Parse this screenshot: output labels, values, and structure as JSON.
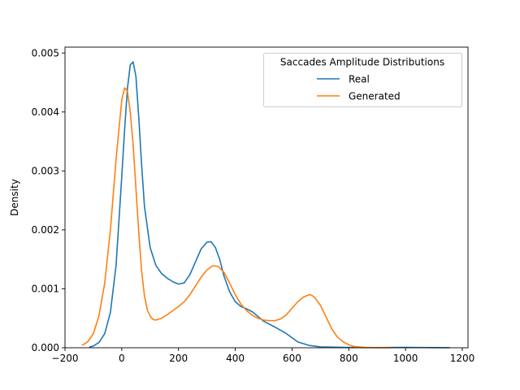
{
  "chart_data": {
    "type": "line",
    "title": "",
    "xlabel": "",
    "ylabel": "Density",
    "xlim": [
      -200,
      1220
    ],
    "ylim": [
      0,
      0.0051
    ],
    "x_ticks": [
      -200,
      0,
      200,
      400,
      600,
      800,
      1000,
      1200
    ],
    "x_tick_labels": [
      "−200",
      "0",
      "200",
      "400",
      "600",
      "800",
      "1000",
      "1200"
    ],
    "y_ticks": [
      0,
      0.001,
      0.002,
      0.003,
      0.004,
      0.005
    ],
    "y_tick_labels": [
      "0.000",
      "0.001",
      "0.002",
      "0.003",
      "0.004",
      "0.005"
    ],
    "grid": false,
    "legend": {
      "title": "Saccades Amplitude Distributions",
      "placement": "top-right"
    },
    "series": [
      {
        "name": "Real",
        "color": "#1f77b4",
        "x": [
          -115,
          -100,
          -80,
          -60,
          -40,
          -20,
          0,
          10,
          20,
          30,
          40,
          50,
          60,
          70,
          80,
          100,
          120,
          140,
          160,
          180,
          200,
          220,
          240,
          260,
          280,
          300,
          315,
          330,
          345,
          360,
          380,
          400,
          420,
          440,
          460,
          480,
          500,
          540,
          580,
          620,
          660,
          700,
          800,
          900,
          1000,
          1100,
          1155
        ],
        "y": [
          1e-05,
          3e-05,
          9e-05,
          0.00024,
          0.0006,
          0.0014,
          0.0029,
          0.0037,
          0.0044,
          0.0048,
          0.00485,
          0.0046,
          0.0039,
          0.0031,
          0.0024,
          0.0017,
          0.0014,
          0.00126,
          0.00118,
          0.00112,
          0.00108,
          0.0011,
          0.00124,
          0.00146,
          0.00168,
          0.00179,
          0.0018,
          0.0017,
          0.0015,
          0.00122,
          0.00095,
          0.00078,
          0.0007,
          0.00066,
          0.00061,
          0.00053,
          0.00045,
          0.00035,
          0.00024,
          0.0001,
          4e-05,
          1.5e-05,
          5e-06,
          3e-06,
          6e-06,
          2e-06,
          1e-06
        ]
      },
      {
        "name": "Generated",
        "color": "#ff7f0e",
        "x": [
          -140,
          -120,
          -100,
          -80,
          -60,
          -40,
          -20,
          0,
          10,
          20,
          30,
          40,
          50,
          60,
          70,
          80,
          90,
          100,
          110,
          120,
          140,
          160,
          180,
          200,
          220,
          240,
          260,
          280,
          300,
          320,
          340,
          360,
          380,
          400,
          420,
          440,
          460,
          480,
          500,
          520,
          540,
          560,
          580,
          600,
          620,
          640,
          660,
          670,
          680,
          700,
          720,
          740,
          760,
          780,
          800,
          820,
          860,
          900,
          950
        ],
        "y": [
          4e-05,
          0.0001,
          0.00024,
          0.00055,
          0.0011,
          0.002,
          0.0032,
          0.0042,
          0.00441,
          0.00435,
          0.004,
          0.00345,
          0.0027,
          0.00195,
          0.0013,
          0.00088,
          0.00064,
          0.00054,
          0.00048,
          0.00047,
          0.0005,
          0.00056,
          0.00063,
          0.0007,
          0.00078,
          0.0009,
          0.00105,
          0.0012,
          0.00132,
          0.00139,
          0.00138,
          0.00128,
          0.0011,
          0.0009,
          0.00074,
          0.00063,
          0.00055,
          0.0005,
          0.00047,
          0.00046,
          0.00046,
          0.00049,
          0.00056,
          0.00067,
          0.00078,
          0.00086,
          0.0009,
          0.00089,
          0.00085,
          0.00072,
          0.00052,
          0.00032,
          0.00018,
          0.0001,
          5e-05,
          2e-05,
          6e-06,
          2e-06,
          5e-07
        ]
      }
    ]
  }
}
